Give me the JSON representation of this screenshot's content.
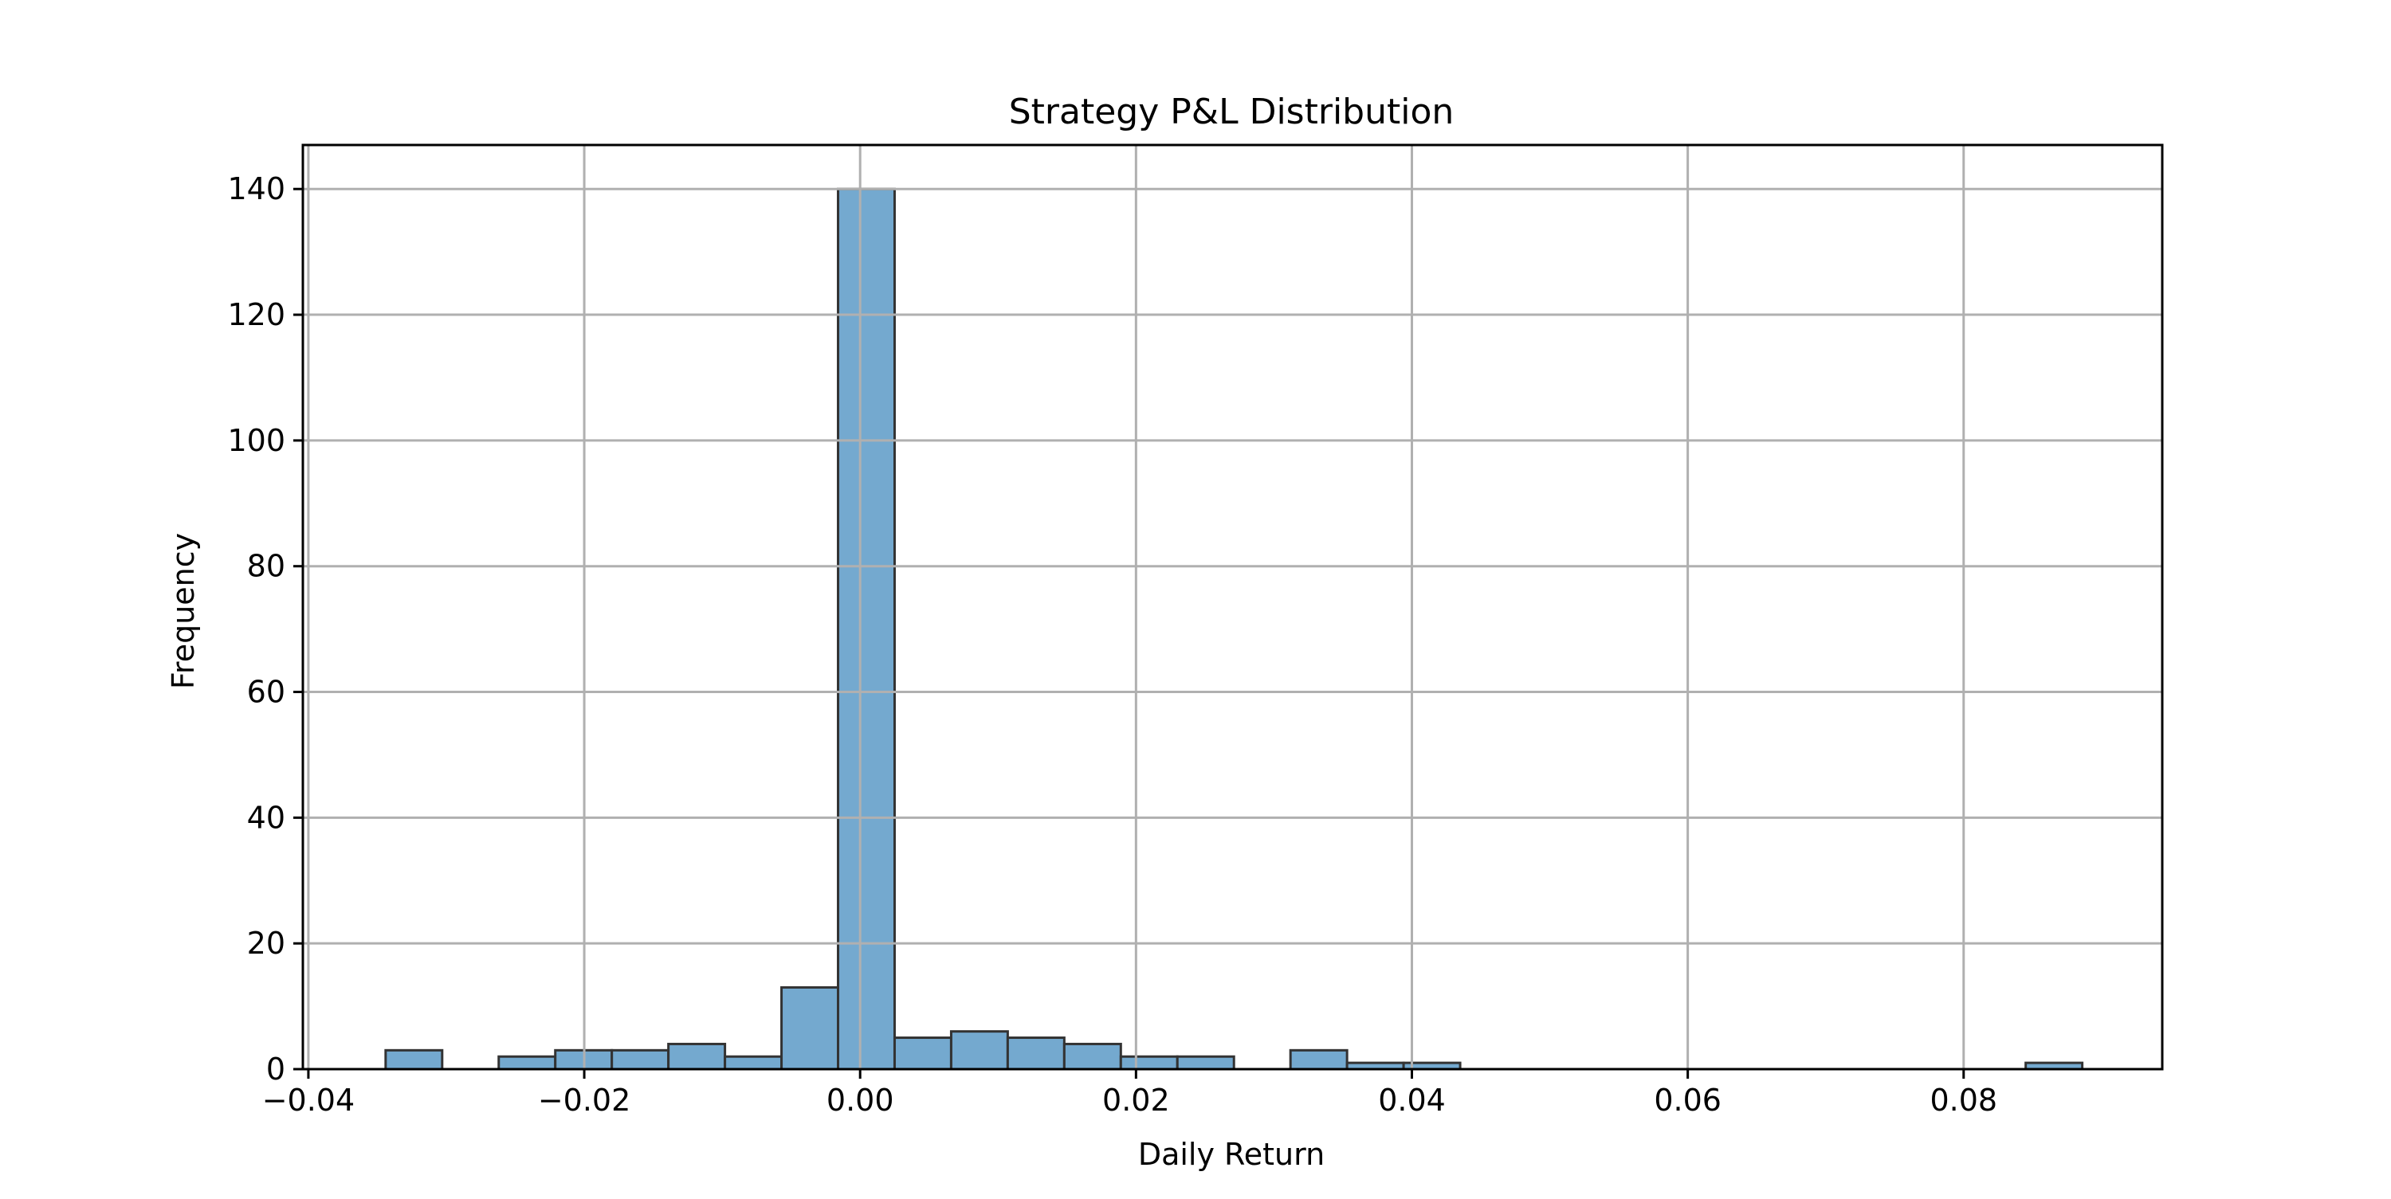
{
  "chart_data": {
    "type": "bar",
    "title": "Strategy P&L Distribution",
    "xlabel": "Daily Return",
    "ylabel": "Frequency",
    "xlim": [
      -0.0404,
      0.0944
    ],
    "ylim": [
      0,
      147
    ],
    "xticks": [
      -0.04,
      -0.02,
      0.0,
      0.02,
      0.04,
      0.06,
      0.08
    ],
    "xtick_labels": [
      "−0.04",
      "−0.02",
      "0.00",
      "0.02",
      "0.04",
      "0.06",
      "0.08"
    ],
    "yticks": [
      0,
      20,
      40,
      60,
      80,
      100,
      120,
      140
    ],
    "ytick_labels": [
      "0",
      "20",
      "40",
      "60",
      "80",
      "100",
      "120",
      "140"
    ],
    "bin_start": -0.0344,
    "bin_width": 0.0041,
    "bin_counts": [
      3,
      0,
      2,
      3,
      3,
      4,
      2,
      13,
      140,
      5,
      6,
      5,
      4,
      2,
      2,
      0,
      3,
      1,
      1,
      0,
      0,
      0,
      0,
      0,
      0,
      0,
      0,
      0,
      0,
      1
    ],
    "grid": true,
    "colors": {
      "bar_fill": "#74a9cf",
      "bar_edge": "#333333",
      "grid": "#b0b0b0",
      "axes": "#000000"
    }
  }
}
